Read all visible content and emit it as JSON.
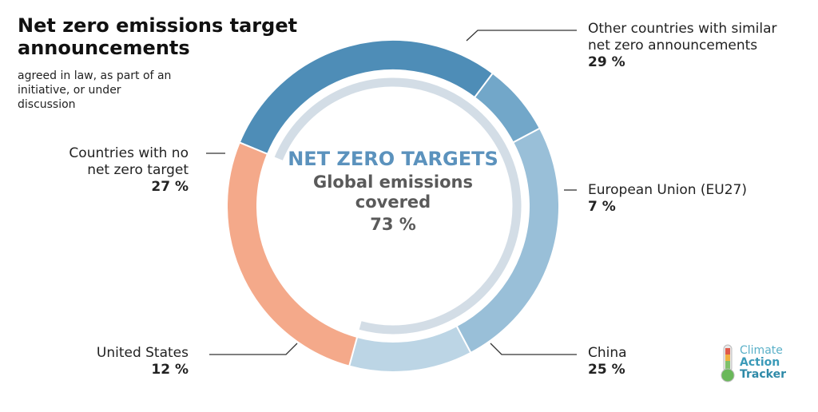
{
  "header": {
    "title": "Net zero emissions target announcements",
    "subtitle": "agreed in law, as part of an initiative, or under discussion"
  },
  "center": {
    "label1": "NET ZERO TARGETS",
    "label2": "Global emissions covered",
    "value": "73 %"
  },
  "chart_data": {
    "type": "pie",
    "variant": "donut",
    "title": "Net zero emissions target announcements",
    "subtitle": "agreed in law, as part of an initiative, or under discussion",
    "slices": [
      {
        "name": "Other countries with similar net zero announcements",
        "value": 29,
        "label": "29 %",
        "color": "#4e8db7"
      },
      {
        "name": "European Union (EU27)",
        "value": 7,
        "label": "7 %",
        "color": "#72a7c9"
      },
      {
        "name": "China",
        "value": 25,
        "label": "25 %",
        "color": "#99bfd8"
      },
      {
        "name": "United States",
        "value": 12,
        "label": "12 %",
        "color": "#bcd5e5"
      },
      {
        "name": "Countries with no net zero target",
        "value": 27,
        "label": "27 %",
        "color": "#f4a98a"
      }
    ],
    "net_zero_coverage": 73
  },
  "logo": {
    "line1": "Climate",
    "line2": "Action",
    "line3": "Tracker"
  }
}
